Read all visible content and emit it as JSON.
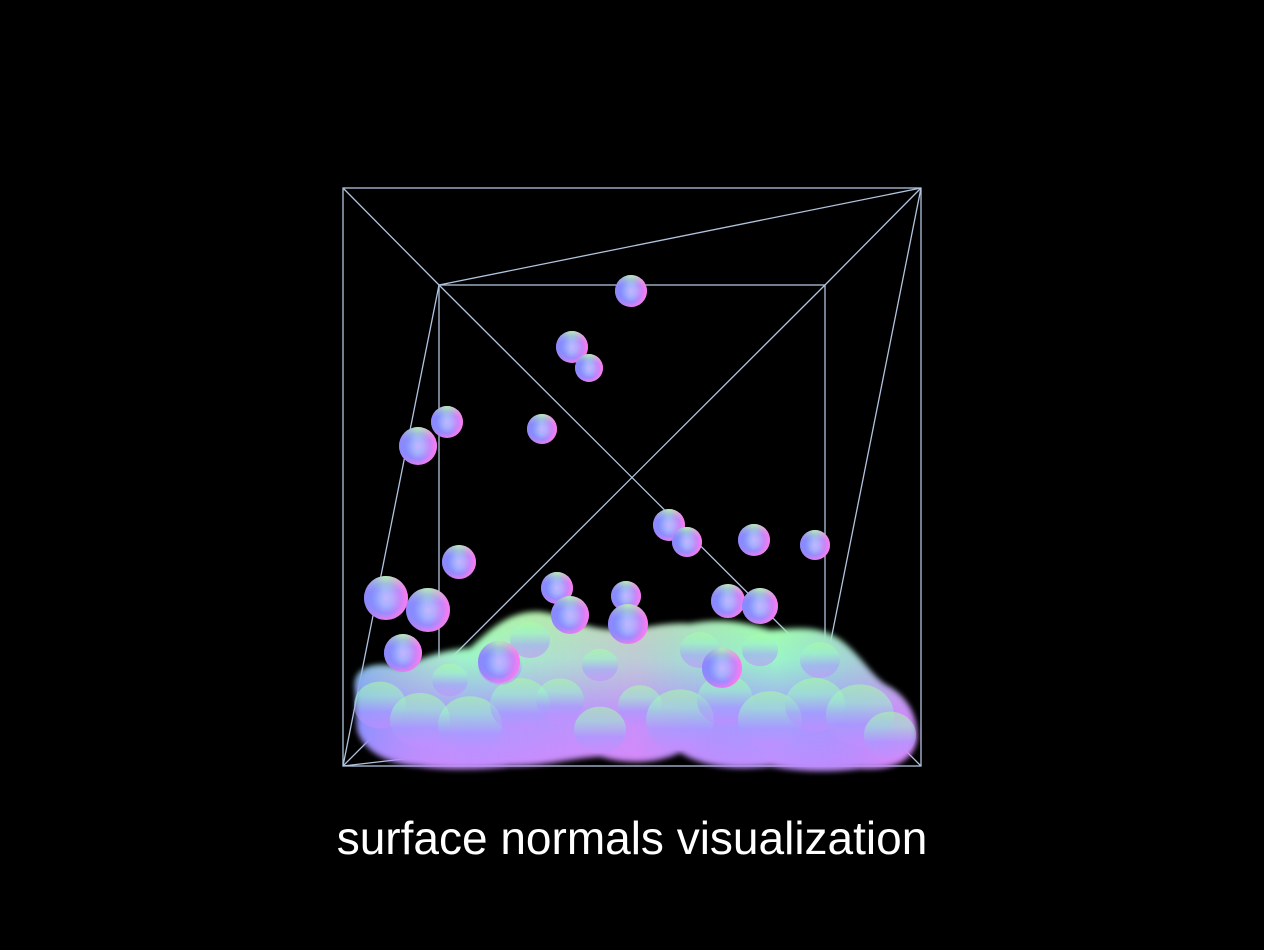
{
  "caption": "surface normals visualization",
  "colors": {
    "background": "#000000",
    "wireframe": "#b0c4de",
    "caption": "#ffffff",
    "normal_up": "#9cff9c",
    "normal_right": "#ff8cf5",
    "normal_left": "#7a9cff",
    "normal_front": "#b8a6ff"
  }
}
